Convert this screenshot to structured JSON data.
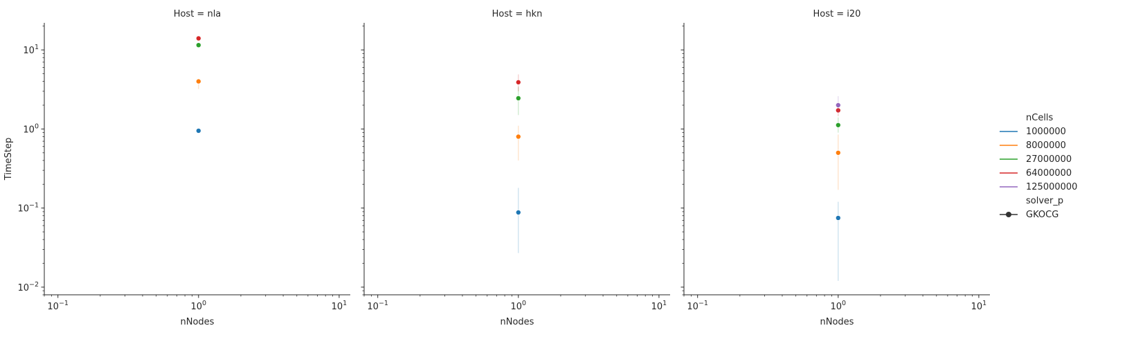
{
  "chart_data": {
    "type": "scatter",
    "x_scale": "log",
    "y_scale": "log",
    "xlim": [
      0.08,
      12
    ],
    "ylim": [
      0.008,
      22
    ],
    "xlabel": "nNodes",
    "ylabel": "TimeStep",
    "x_ticks": [
      {
        "value": 0.1,
        "base": "10",
        "exp": "−1"
      },
      {
        "value": 1,
        "base": "10",
        "exp": "0"
      },
      {
        "value": 10,
        "base": "10",
        "exp": "1"
      }
    ],
    "y_ticks": [
      {
        "value": 0.01,
        "base": "10",
        "exp": "−2"
      },
      {
        "value": 0.1,
        "base": "10",
        "exp": "−1"
      },
      {
        "value": 1,
        "base": "10",
        "exp": "0"
      },
      {
        "value": 10,
        "base": "10",
        "exp": "1"
      }
    ],
    "grid": false,
    "legend_placement": "right",
    "legend": {
      "hue_title": "nCells",
      "hue_entries": [
        {
          "label": "1000000",
          "color": "#1f77b4"
        },
        {
          "label": "8000000",
          "color": "#ff7f0e"
        },
        {
          "label": "27000000",
          "color": "#2ca02c"
        },
        {
          "label": "64000000",
          "color": "#d62728"
        },
        {
          "label": "125000000",
          "color": "#9467bd"
        }
      ],
      "style_title": "solver_p",
      "style_entries": [
        {
          "label": "GKOCG",
          "color": "#333333"
        }
      ]
    },
    "panels": [
      {
        "title": "Host = nla",
        "points": [
          {
            "nCells": "1000000",
            "x": 1,
            "y": 0.95,
            "ylow": 0.95,
            "yhigh": 0.95
          },
          {
            "nCells": "8000000",
            "x": 1,
            "y": 4.0,
            "ylow": 3.2,
            "yhigh": 4.3
          },
          {
            "nCells": "27000000",
            "x": 1,
            "y": 11.5,
            "ylow": 11.5,
            "yhigh": 11.5
          },
          {
            "nCells": "64000000",
            "x": 1,
            "y": 14.0,
            "ylow": 14.0,
            "yhigh": 14.0
          }
        ]
      },
      {
        "title": "Host = hkn",
        "points": [
          {
            "nCells": "1000000",
            "x": 1,
            "y": 0.088,
            "ylow": 0.027,
            "yhigh": 0.18
          },
          {
            "nCells": "8000000",
            "x": 1,
            "y": 0.8,
            "ylow": 0.4,
            "yhigh": 1.1
          },
          {
            "nCells": "27000000",
            "x": 1,
            "y": 2.45,
            "ylow": 1.5,
            "yhigh": 3.4
          },
          {
            "nCells": "64000000",
            "x": 1,
            "y": 3.9,
            "ylow": 3.0,
            "yhigh": 4.9
          }
        ]
      },
      {
        "title": "Host = i20",
        "points": [
          {
            "nCells": "1000000",
            "x": 1,
            "y": 0.075,
            "ylow": 0.012,
            "yhigh": 0.12
          },
          {
            "nCells": "8000000",
            "x": 1,
            "y": 0.5,
            "ylow": 0.17,
            "yhigh": 0.85
          },
          {
            "nCells": "27000000",
            "x": 1,
            "y": 1.12,
            "ylow": 0.9,
            "yhigh": 1.4
          },
          {
            "nCells": "64000000",
            "x": 1,
            "y": 1.72,
            "ylow": 1.45,
            "yhigh": 2.1
          },
          {
            "nCells": "125000000",
            "x": 1,
            "y": 2.0,
            "ylow": 1.6,
            "yhigh": 2.6
          }
        ]
      }
    ]
  }
}
